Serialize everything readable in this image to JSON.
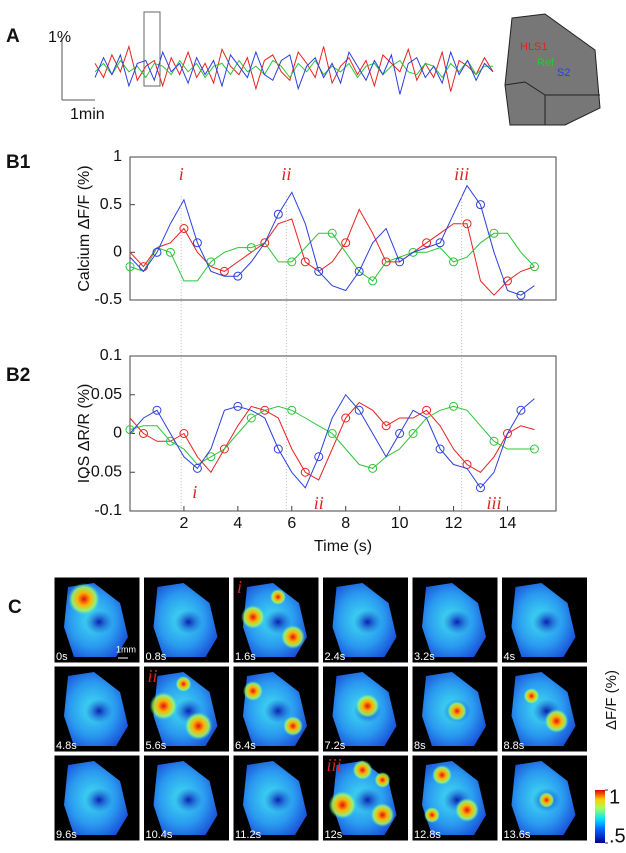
{
  "panels": {
    "a": "A",
    "b1": "B1",
    "b2": "B2",
    "c": "C"
  },
  "panel_a": {
    "scale_y": "1%",
    "scale_x": "1min"
  },
  "chart_data": [
    {
      "type": "trace",
      "ylim": [
        -1.1,
        1.1
      ],
      "series": [
        {
          "name": "HLS1",
          "color": "#e8211f",
          "values": [
            0.2,
            -0.3,
            0.5,
            -0.1,
            0.8,
            -0.4,
            0.1,
            0.3,
            -0.6,
            0.4,
            -0.2,
            0.6,
            -0.3,
            0.2,
            -0.5,
            0.7,
            0.1,
            -0.2,
            0.4,
            -0.7,
            0.3,
            0.5,
            -0.1,
            -0.4,
            0.6,
            0.2,
            -0.3,
            0.8,
            -0.5,
            0.1,
            0.4,
            -0.2,
            0.3,
            -0.6,
            0.5,
            0.2,
            -0.1,
            0.7,
            -0.4,
            0.2,
            -0.3,
            0.6,
            -0.8,
            0.3,
            0.1,
            -0.2,
            0.4,
            -0.1
          ]
        },
        {
          "name": "Ref",
          "color": "#2dc43a",
          "values": [
            -0.1,
            0.2,
            -0.2,
            0.3,
            -0.1,
            0.1,
            -0.3,
            0.2,
            0.1,
            -0.2,
            0.3,
            -0.1,
            0.2,
            -0.3,
            0.1,
            0.2,
            -0.2,
            0.3,
            -0.1,
            0.1,
            -0.2,
            0.3,
            0.1,
            -0.3,
            0.2,
            -0.1,
            0.3,
            -0.2,
            0.1,
            -0.1,
            0.2,
            -0.3,
            0.1,
            0.2,
            -0.2,
            0.1,
            0.3,
            -0.1,
            -0.2,
            0.2,
            0.1,
            -0.3,
            0.2,
            -0.1,
            0.3,
            -0.2,
            0.1,
            0.1
          ]
        },
        {
          "name": "S2",
          "color": "#2b3fe0",
          "values": [
            -0.3,
            0.4,
            -0.2,
            0.5,
            -0.6,
            0.2,
            0.3,
            -0.4,
            0.6,
            -0.1,
            0.2,
            -0.5,
            0.4,
            -0.2,
            0.3,
            -0.6,
            0.5,
            0.1,
            -0.3,
            0.6,
            -0.2,
            -0.4,
            0.3,
            0.5,
            -0.7,
            0.1,
            0.4,
            -0.3,
            0.2,
            -0.5,
            0.6,
            0.1,
            -0.4,
            0.3,
            -0.2,
            0.5,
            -0.9,
            0.2,
            0.4,
            -0.3,
            0.1,
            -0.5,
            0.6,
            -0.2,
            0.3,
            -0.4,
            0.2,
            -0.1
          ]
        }
      ]
    },
    {
      "type": "line",
      "ylabel": "Calcium ΔF/F (%)",
      "xlim": [
        0,
        15.8
      ],
      "ylim": [
        -0.5,
        1
      ],
      "yticks": [
        -0.5,
        0,
        0.5,
        1
      ],
      "x": [
        0,
        0.5,
        1,
        1.5,
        2,
        2.5,
        3,
        3.5,
        4,
        4.5,
        5,
        5.5,
        6,
        6.5,
        7,
        7.5,
        8,
        8.5,
        9,
        9.5,
        10,
        10.5,
        11,
        11.5,
        12,
        12.5,
        13,
        13.5,
        14,
        14.5,
        15
      ],
      "series": [
        {
          "color": "#e8211f",
          "values": [
            0,
            -0.15,
            0.05,
            0.1,
            0.25,
            0,
            -0.15,
            -0.2,
            -0.1,
            0,
            0.1,
            0.3,
            0.35,
            -0.1,
            -0.2,
            -0.1,
            0.1,
            0.45,
            0.2,
            -0.1,
            -0.1,
            0,
            0.1,
            0.2,
            0.3,
            0.3,
            -0.3,
            -0.45,
            -0.3,
            -0.2,
            -0.15
          ]
        },
        {
          "color": "#2dc43a",
          "values": [
            -0.15,
            -0.2,
            0.05,
            0,
            -0.3,
            -0.3,
            -0.1,
            0,
            0.05,
            0.05,
            0.1,
            -0.1,
            -0.1,
            0.05,
            0.2,
            0.2,
            0,
            -0.2,
            -0.3,
            -0.1,
            -0.05,
            0,
            0,
            0.05,
            -0.1,
            -0.05,
            0.1,
            0.2,
            0.2,
            0,
            -0.15
          ]
        },
        {
          "color": "#2b3fe0",
          "values": [
            -0.05,
            -0.2,
            0,
            0.3,
            0.55,
            0.1,
            -0.2,
            -0.25,
            -0.25,
            -0.1,
            0.1,
            0.4,
            0.63,
            0.3,
            -0.2,
            -0.35,
            -0.4,
            -0.2,
            0.1,
            0.25,
            -0.1,
            0,
            0.05,
            0.1,
            0.4,
            0.7,
            0.5,
            0,
            -0.4,
            -0.45,
            -0.35
          ]
        }
      ],
      "annotations": [
        {
          "text": "i",
          "x": 1.9,
          "y": 0.8
        },
        {
          "text": "ii",
          "x": 5.8,
          "y": 0.8
        },
        {
          "text": "iii",
          "x": 12.3,
          "y": 0.8
        }
      ]
    },
    {
      "type": "line",
      "ylabel": "IOS ΔR/R (%)",
      "xlabel": "Time (s)",
      "xlim": [
        0,
        15.8
      ],
      "ylim": [
        -0.1,
        0.1
      ],
      "yticks": [
        -0.1,
        -0.05,
        0,
        0.05,
        0.1
      ],
      "xticks": [
        2,
        4,
        6,
        8,
        10,
        12,
        14
      ],
      "x": [
        0,
        0.5,
        1,
        1.5,
        2,
        2.5,
        3,
        3.5,
        4,
        4.5,
        5,
        5.5,
        6,
        6.5,
        7,
        7.5,
        8,
        8.5,
        9,
        9.5,
        10,
        10.5,
        11,
        11.5,
        12,
        12.5,
        13,
        13.5,
        14,
        14.5,
        15
      ],
      "series": [
        {
          "color": "#e8211f",
          "values": [
            0.02,
            0,
            -0.01,
            -0.01,
            0,
            -0.03,
            -0.05,
            -0.02,
            0.01,
            0.035,
            0.03,
            0.02,
            -0.02,
            -0.05,
            -0.06,
            -0.02,
            0.02,
            0.04,
            0.03,
            0.01,
            0.02,
            0.02,
            0.03,
            0.01,
            -0.02,
            -0.04,
            -0.05,
            -0.03,
            0,
            0.01,
            0.005
          ]
        },
        {
          "color": "#2dc43a",
          "values": [
            0.005,
            0.01,
            0.01,
            -0.01,
            -0.02,
            -0.04,
            -0.03,
            -0.02,
            0,
            0.02,
            0.03,
            0.035,
            0.03,
            0.02,
            0.01,
            0,
            -0.02,
            -0.04,
            -0.045,
            -0.03,
            -0.02,
            0,
            0.02,
            0.03,
            0.035,
            0.03,
            0.01,
            -0.01,
            -0.02,
            -0.02,
            -0.02
          ]
        },
        {
          "color": "#2b3fe0",
          "values": [
            0,
            0.02,
            0.03,
            0,
            -0.03,
            -0.045,
            -0.02,
            0.03,
            0.035,
            0.03,
            0.02,
            -0.02,
            -0.05,
            -0.07,
            -0.03,
            0.02,
            0.05,
            0.03,
            0,
            -0.03,
            0,
            0.03,
            0.02,
            -0.02,
            -0.04,
            -0.045,
            -0.07,
            -0.05,
            0,
            0.03,
            0.045
          ]
        }
      ],
      "annotations": [
        {
          "text": "i",
          "x": 2.4,
          "y": -0.078
        },
        {
          "text": "ii",
          "x": 7.0,
          "y": -0.092
        },
        {
          "text": "iii",
          "x": 13.5,
          "y": -0.092
        }
      ]
    }
  ],
  "panel_c": {
    "scale": "1mm",
    "frames": [
      {
        "time": "0s"
      },
      {
        "time": "0.8s"
      },
      {
        "time": "1.6s",
        "marker": "i"
      },
      {
        "time": "2.4s"
      },
      {
        "time": "3.2s"
      },
      {
        "time": "4s"
      },
      {
        "time": "4.8s"
      },
      {
        "time": "5.6s",
        "marker": "ii"
      },
      {
        "time": "6.4s"
      },
      {
        "time": "7.2s"
      },
      {
        "time": "8s"
      },
      {
        "time": "8.8s"
      },
      {
        "time": "9.6s"
      },
      {
        "time": "10.4s"
      },
      {
        "time": "11.2s"
      },
      {
        "time": "12s",
        "marker": "iii"
      },
      {
        "time": "12.8s"
      },
      {
        "time": "13.6s"
      }
    ],
    "colorbar": {
      "label": "ΔF/F (%)",
      "lim": [
        0.5,
        1
      ],
      "ticks": [
        1,
        {
          "value": 0.5,
          "label": ".5"
        }
      ]
    }
  }
}
